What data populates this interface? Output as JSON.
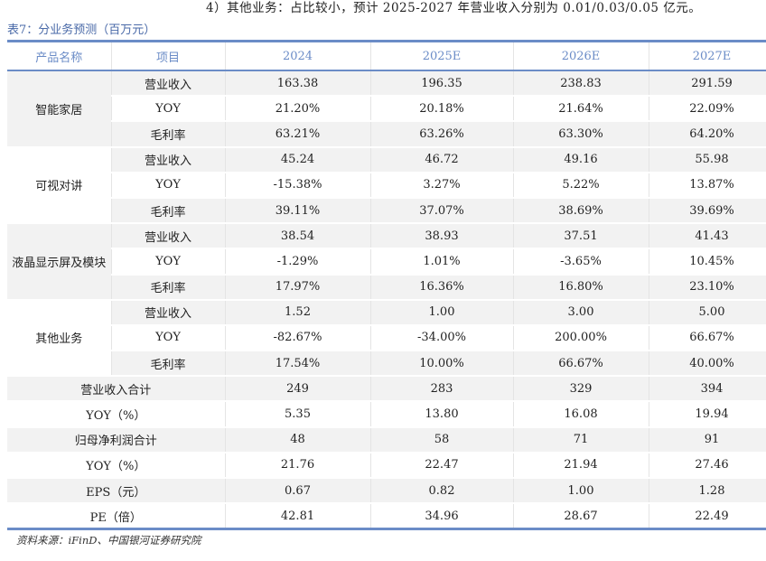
{
  "intro": "4）其他业务：占比较小，预计 2025-2027 年营业收入分别为 0.01/0.03/0.05 亿元。",
  "caption": "表7：分业务预测（百万元）",
  "headers": [
    "产品名称",
    "项目",
    "2024",
    "2025E",
    "2026E",
    "2027E"
  ],
  "groups": [
    {
      "name": "智能家居",
      "rows": [
        [
          "营业收入",
          "163.38",
          "196.35",
          "238.83",
          "291.59"
        ],
        [
          "YOY",
          "21.20%",
          "20.18%",
          "21.64%",
          "22.09%"
        ],
        [
          "毛利率",
          "63.21%",
          "63.26%",
          "63.30%",
          "64.20%"
        ]
      ]
    },
    {
      "name": "可视对讲",
      "rows": [
        [
          "营业收入",
          "45.24",
          "46.72",
          "49.16",
          "55.98"
        ],
        [
          "YOY",
          "-15.38%",
          "3.27%",
          "5.22%",
          "13.87%"
        ],
        [
          "毛利率",
          "39.11%",
          "37.07%",
          "38.69%",
          "39.69%"
        ]
      ]
    },
    {
      "name": "液晶显示屏及模块",
      "rows": [
        [
          "营业收入",
          "38.54",
          "38.93",
          "37.51",
          "41.43"
        ],
        [
          "YOY",
          "-1.29%",
          "1.01%",
          "-3.65%",
          "10.45%"
        ],
        [
          "毛利率",
          "17.97%",
          "16.36%",
          "16.80%",
          "23.10%"
        ]
      ]
    },
    {
      "name": "其他业务",
      "rows": [
        [
          "营业收入",
          "1.52",
          "1.00",
          "3.00",
          "5.00"
        ],
        [
          "YOY",
          "-82.67%",
          "-34.00%",
          "200.00%",
          "66.67%"
        ],
        [
          "毛利率",
          "17.54%",
          "10.00%",
          "66.67%",
          "40.00%"
        ]
      ]
    }
  ],
  "summary": [
    [
      "营业收入合计",
      "249",
      "283",
      "329",
      "394"
    ],
    [
      "YOY（%）",
      "5.35",
      "13.80",
      "16.08",
      "19.94"
    ],
    [
      "归母净利润合计",
      "48",
      "58",
      "71",
      "91"
    ],
    [
      "YOY（%）",
      "21.76",
      "22.47",
      "21.94",
      "27.46"
    ],
    [
      "EPS（元）",
      "0.67",
      "0.82",
      "1.00",
      "1.28"
    ],
    [
      "PE（倍）",
      "42.81",
      "34.96",
      "28.67",
      "22.49"
    ]
  ],
  "source": "资料来源：iFinD、中国银河证券研究院",
  "colors": {
    "accent": "#6b8cc7",
    "stripe": "#f2f2f2"
  }
}
